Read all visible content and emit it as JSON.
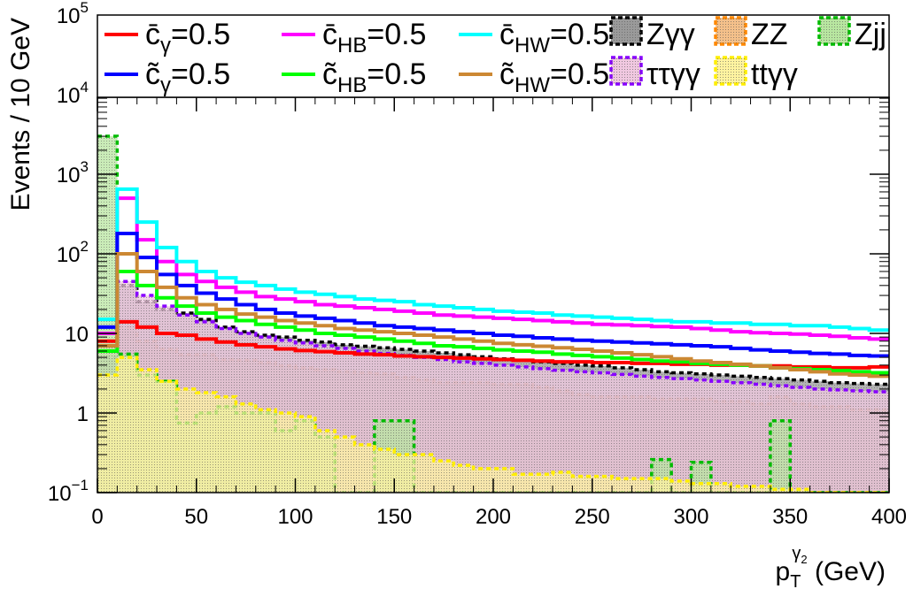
{
  "chart_data": {
    "type": "area",
    "xlabel": "p",
    "xlabel_sub": "T",
    "xlabel_sup_main": "γ",
    "xlabel_sup_sub": "2",
    "xlabel_unit": " (GeV)",
    "ylabel": "Events / 10 GeV",
    "xlim": [
      0,
      400
    ],
    "ylim": [
      0.1,
      100000
    ],
    "yscale": "log",
    "x_ticks": [
      "0",
      "50",
      "100",
      "150",
      "200",
      "250",
      "300",
      "350",
      "400"
    ],
    "y_ticks": [
      {
        "value": 0.1,
        "base": "10",
        "exp": "−1"
      },
      {
        "value": 1,
        "base": "1",
        "exp": ""
      },
      {
        "value": 10,
        "base": "10",
        "exp": ""
      },
      {
        "value": 100,
        "base": "10",
        "exp": "2"
      },
      {
        "value": 1000,
        "base": "10",
        "exp": "3"
      },
      {
        "value": 10000,
        "base": "10",
        "exp": "4"
      },
      {
        "value": 100000,
        "base": "10",
        "exp": "5"
      }
    ],
    "legend_position": "top, inside frame",
    "bin_edges": [
      0,
      10,
      20,
      30,
      40,
      50,
      60,
      70,
      80,
      90,
      100,
      110,
      120,
      130,
      140,
      150,
      160,
      170,
      180,
      190,
      200,
      210,
      220,
      230,
      240,
      250,
      260,
      270,
      280,
      290,
      300,
      310,
      320,
      330,
      340,
      350,
      360,
      370,
      380,
      390,
      400
    ],
    "signal_series": [
      {
        "sym": "c̄",
        "sub": "γ",
        "value_text": "=0.5",
        "color": "#ff0000",
        "values": [
          8,
          14,
          12,
          10,
          9.5,
          8.5,
          7.8,
          7.2,
          6.8,
          6.4,
          6.1,
          5.9,
          5.7,
          5.5,
          5.4,
          5.2,
          5.1,
          5.0,
          4.9,
          4.8,
          4.7,
          4.6,
          4.5,
          4.4,
          4.4,
          4.3,
          4.3,
          4.2,
          4.2,
          4.1,
          4.1,
          4.0,
          4.0,
          3.9,
          3.9,
          3.8,
          3.8,
          3.7,
          3.7,
          3.8
        ]
      },
      {
        "sym": "c̄",
        "sub": "HB",
        "value_text": "=0.5",
        "color": "#ff00ff",
        "values": [
          10,
          500,
          150,
          80,
          55,
          45,
          38,
          33,
          29,
          27,
          25,
          23,
          22,
          21,
          20,
          19,
          18,
          17,
          16.5,
          16,
          15.5,
          15,
          14.5,
          14,
          13.5,
          13,
          12.8,
          12.5,
          12.2,
          12,
          11.5,
          11,
          10.5,
          10.2,
          10,
          9.8,
          9.5,
          9.2,
          8.8,
          8.5
        ]
      },
      {
        "sym": "c̄",
        "sub": "HW",
        "value_text": "=0.5",
        "color": "#00ffff",
        "values": [
          15,
          650,
          250,
          120,
          80,
          60,
          50,
          44,
          40,
          36,
          33,
          31,
          29,
          27,
          26,
          25,
          23,
          22,
          21,
          20,
          19,
          18.5,
          18,
          17,
          16.5,
          16,
          15.5,
          15,
          14.5,
          14,
          14,
          13.5,
          13.5,
          13,
          13,
          12.5,
          12.5,
          12,
          11.5,
          11
        ]
      },
      {
        "sym": "c̃",
        "sub": "γ",
        "value_text": "=0.5",
        "color": "#0000ff",
        "values": [
          12,
          180,
          90,
          55,
          40,
          32,
          27,
          23,
          20,
          18,
          16.5,
          15.5,
          14.5,
          13.5,
          12.5,
          12,
          11.5,
          11,
          10.5,
          10,
          9.5,
          9.2,
          8.8,
          8.5,
          8.2,
          8,
          7.8,
          7.6,
          7.4,
          7.2,
          7,
          6.8,
          6.5,
          6.2,
          6,
          5.8,
          5.6,
          5.5,
          5.3,
          5.2
        ]
      },
      {
        "sym": "c̃",
        "sub": "HB",
        "value_text": "=0.5",
        "color": "#00ff00",
        "values": [
          6,
          60,
          40,
          28,
          22,
          18,
          16,
          14.5,
          13,
          12,
          11,
          10,
          9.5,
          9,
          8.5,
          8,
          7.5,
          7,
          6.8,
          6.5,
          6.2,
          6,
          5.8,
          5.5,
          5.3,
          5.1,
          4.9,
          4.7,
          4.5,
          4.4,
          4.2,
          4.1,
          4,
          3.9,
          3.7,
          3.6,
          3.5,
          3.4,
          3.3,
          3.2
        ]
      },
      {
        "sym": "c̃",
        "sub": "HW",
        "value_text": "=0.5",
        "color": "#cc8833",
        "values": [
          7,
          100,
          60,
          38,
          28,
          23,
          20,
          17.5,
          16,
          14.5,
          13.5,
          12.5,
          11.5,
          11,
          10.5,
          10,
          9.5,
          9,
          8.5,
          8,
          7.5,
          7.2,
          6.9,
          6.6,
          6.3,
          6,
          5.7,
          5.4,
          5.1,
          4.8,
          4.5,
          4.3,
          4.1,
          3.9,
          3.7,
          3.5,
          3.3,
          3.1,
          3,
          2.9
        ]
      }
    ],
    "background_series": [
      {
        "name": "Zγγ",
        "color": "#000000",
        "fill": "#9a9a9a",
        "values": [
          5,
          40,
          25,
          20,
          18,
          15,
          12,
          10.5,
          9.5,
          9,
          8.2,
          7.8,
          7.2,
          6.9,
          6.6,
          6.3,
          6,
          5.7,
          5.4,
          5.1,
          4.8,
          4.6,
          4.4,
          4.2,
          4.0,
          3.9,
          3.7,
          3.5,
          3.3,
          3.2,
          3.1,
          3.0,
          2.9,
          2.8,
          2.7,
          2.6,
          2.5,
          2.4,
          2.35,
          2.3
        ]
      },
      {
        "name": "ZZ",
        "color": "#ff8800",
        "fill": "#f4c08a",
        "values": [
          7,
          12,
          8,
          6.3,
          5.4,
          5.4,
          4.7,
          4.6,
          4.3,
          3.9,
          3.7,
          3.5,
          3.3,
          3.2,
          3.1,
          2.8,
          2.6,
          2.4,
          2.4,
          2.4,
          2.3,
          2.3,
          2.1,
          1.9,
          1.7,
          1.6,
          1.6,
          1.6,
          1.5,
          1.5,
          1.5,
          1.4,
          1.4,
          1.3,
          1.6,
          1.3,
          1.2,
          1.2,
          1.1,
          1.1
        ]
      },
      {
        "name": "Zjj",
        "color": "#00bb00",
        "fill": "#b8e6a0",
        "values": [
          3000,
          5.5,
          3,
          2.5,
          0.75,
          1.0,
          1.2,
          1.0,
          1.0,
          0.6,
          0.8,
          0.5,
          0.06,
          0.06,
          0.8,
          0.8,
          0.06,
          0.06,
          0.06,
          0.06,
          0.06,
          0.06,
          0.06,
          0.06,
          0.06,
          0.06,
          0.06,
          0.06,
          0.26,
          0.09,
          0.24,
          0.06,
          0.06,
          0.06,
          0.8,
          0.06,
          0.06,
          0.06,
          0.06,
          0.06
        ]
      },
      {
        "name": "ττγγ",
        "color": "#8800ff",
        "fill": "#f0c8e0",
        "values": [
          6,
          45,
          30,
          22,
          17,
          14,
          11.5,
          10,
          9,
          8.2,
          7.6,
          7,
          6.5,
          6,
          5.6,
          5.3,
          5,
          4.7,
          4.4,
          4.2,
          4,
          3.8,
          3.6,
          3.45,
          3.3,
          3.2,
          3.05,
          2.9,
          2.8,
          2.7,
          2.6,
          2.5,
          2.4,
          2.3,
          2.2,
          2.1,
          2,
          1.95,
          1.9,
          1.85
        ]
      },
      {
        "name": "ttγγ",
        "color": "#ffee00",
        "fill": "#fff3a0",
        "values": [
          3,
          5,
          3.5,
          2.5,
          2,
          1.8,
          1.6,
          1.3,
          1.1,
          1.0,
          0.9,
          0.6,
          0.5,
          0.4,
          0.35,
          0.3,
          0.3,
          0.25,
          0.22,
          0.2,
          0.2,
          0.17,
          0.17,
          0.18,
          0.16,
          0.16,
          0.15,
          0.15,
          0.15,
          0.14,
          0.13,
          0.13,
          0.12,
          0.12,
          0.11,
          0.11,
          0.1,
          0.1,
          0.1,
          0.1
        ]
      }
    ]
  }
}
